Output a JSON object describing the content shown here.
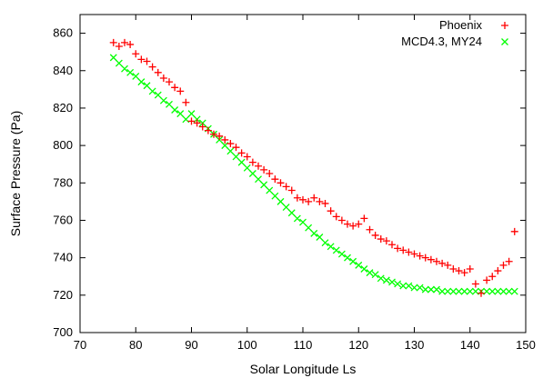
{
  "chart_data": {
    "type": "scatter",
    "xlabel": "Solar Longitude Ls",
    "ylabel": "Surface Pressure (Pa)",
    "xlim": [
      70,
      150
    ],
    "ylim": [
      700,
      870
    ],
    "xticks": [
      "70",
      "80",
      "90",
      "100",
      "110",
      "120",
      "130",
      "140",
      "150"
    ],
    "yticks": [
      "700",
      "720",
      "740",
      "760",
      "780",
      "800",
      "820",
      "840",
      "860"
    ],
    "legend_position": "top-right",
    "series": [
      {
        "name": "Phoenix",
        "marker": "+",
        "color": "#ff0000",
        "x": [
          76,
          77,
          78,
          79,
          80,
          81,
          82,
          83,
          84,
          85,
          86,
          87,
          88,
          89,
          90,
          91,
          92,
          93,
          94,
          95,
          96,
          97,
          98,
          99,
          100,
          101,
          102,
          103,
          104,
          105,
          106,
          107,
          108,
          109,
          110,
          111,
          112,
          113,
          114,
          115,
          116,
          117,
          118,
          119,
          120,
          121,
          122,
          123,
          124,
          125,
          126,
          127,
          128,
          129,
          130,
          131,
          132,
          133,
          134,
          135,
          136,
          137,
          138,
          139,
          140,
          141,
          142,
          143,
          144,
          145,
          146,
          147,
          148
        ],
        "y": [
          855,
          853,
          855,
          854,
          849,
          846,
          845,
          842,
          839,
          836,
          834,
          831,
          829,
          823,
          813,
          812,
          810,
          808,
          806,
          805,
          803,
          801,
          799,
          796,
          794,
          791,
          789,
          787,
          785,
          782,
          780,
          778,
          776,
          772,
          771,
          770,
          772,
          770,
          769,
          765,
          762,
          760,
          758,
          757,
          758,
          761,
          755,
          752,
          750,
          749,
          747,
          745,
          744,
          743,
          742,
          741,
          740,
          739,
          738,
          737,
          736,
          734,
          733,
          732,
          734,
          726,
          721,
          728,
          730,
          733,
          736,
          738,
          754
        ]
      },
      {
        "name": "MCD4.3, MY24",
        "marker": "x",
        "color": "#00ff00",
        "x": [
          76,
          77,
          78,
          79,
          80,
          81,
          82,
          83,
          84,
          85,
          86,
          87,
          88,
          89,
          90,
          91,
          92,
          93,
          94,
          95,
          96,
          97,
          98,
          99,
          100,
          101,
          102,
          103,
          104,
          105,
          106,
          107,
          108,
          109,
          110,
          111,
          112,
          113,
          114,
          115,
          116,
          117,
          118,
          119,
          120,
          121,
          122,
          123,
          124,
          125,
          126,
          127,
          128,
          129,
          130,
          131,
          132,
          133,
          134,
          135,
          136,
          137,
          138,
          139,
          140,
          141,
          142,
          143,
          144,
          145,
          146,
          147,
          148
        ],
        "y": [
          847,
          844,
          841,
          839,
          837,
          834,
          832,
          829,
          827,
          824,
          822,
          819,
          817,
          814,
          817,
          814,
          812,
          809,
          806,
          803,
          800,
          797,
          794,
          791,
          788,
          785,
          782,
          779,
          776,
          773,
          770,
          767,
          764,
          761,
          759,
          756,
          753,
          751,
          748,
          746,
          744,
          742,
          740,
          738,
          736,
          734,
          732,
          731,
          729,
          728,
          727,
          726,
          725,
          725,
          724,
          724,
          723,
          723,
          723,
          722,
          722,
          722,
          722,
          722,
          722,
          722,
          722,
          722,
          722,
          722,
          722,
          722,
          722
        ]
      }
    ]
  }
}
